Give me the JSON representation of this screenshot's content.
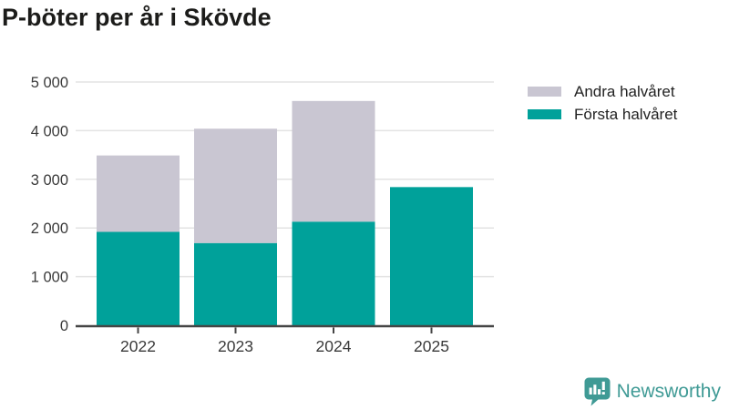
{
  "title": "P-böter per år i Skövde",
  "chart_data": {
    "type": "bar",
    "stacked": true,
    "title": "P-böter per år i Skövde",
    "categories": [
      "2022",
      "2023",
      "2024",
      "2025"
    ],
    "series": [
      {
        "name": "Första halvåret",
        "color": "#00a19a",
        "values": [
          1920,
          1690,
          2130,
          2840
        ]
      },
      {
        "name": "Andra halvåret",
        "color": "#c9c6d2",
        "values": [
          1570,
          2350,
          2480,
          0
        ]
      }
    ],
    "totals": [
      3490,
      4040,
      4610,
      2840
    ],
    "xlabel": "",
    "ylabel": "",
    "ylim": [
      0,
      5000
    ],
    "yticks": [
      0,
      1000,
      2000,
      3000,
      4000,
      5000
    ],
    "ytick_labels": [
      "0",
      "1 000",
      "2 000",
      "3 000",
      "4 000",
      "5 000"
    ],
    "grid": true,
    "legend_position": "top-right",
    "legend_order": [
      "Andra halvåret",
      "Första halvåret"
    ]
  },
  "colors": {
    "grid_line": "#e3e3e3",
    "axis_line": "#454545",
    "tick_text": "#3a3a3a",
    "title_text": "#1c1c1a",
    "brand_teal": "#3f9a95"
  },
  "footer": {
    "brand": "Newsworthy"
  }
}
